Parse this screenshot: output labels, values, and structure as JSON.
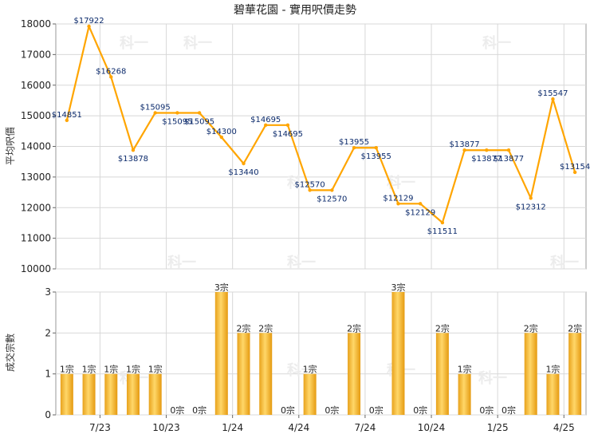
{
  "chart_data": [
    {
      "type": "line",
      "title": "碧華花園 - 實用呎價走勢",
      "ylabel": "平均呎價",
      "xlabel": "",
      "ylim": [
        10000,
        18000
      ],
      "yticks": [
        10000,
        11000,
        12000,
        13000,
        14000,
        15000,
        16000,
        17000,
        18000
      ],
      "grid": true,
      "color": "#FFA500",
      "values": [
        14851,
        17922,
        16268,
        13878,
        15095,
        15095,
        15095,
        14300,
        13440,
        14695,
        14695,
        12570,
        12570,
        13955,
        13955,
        12129,
        12129,
        11511,
        13877,
        13877,
        13877,
        12312,
        15547,
        13154
      ],
      "labels": [
        "$14851",
        "$17922",
        "$16268",
        "$13878",
        "$15095",
        "$15095",
        "$15095",
        "$14300",
        "$13440",
        "$14695",
        "$14695",
        "$12570",
        "$12570",
        "$13955",
        "$13955",
        "$12129",
        "$12129",
        "$11511",
        "$13877",
        "$13877",
        "$13877",
        "$12312",
        "$15547",
        "$13154"
      ]
    },
    {
      "type": "bar",
      "ylabel": "成交宗數",
      "xlabel": "",
      "ylim": [
        0,
        3
      ],
      "yticks": [
        0,
        1,
        2,
        3
      ],
      "grid": true,
      "values": [
        1,
        1,
        1,
        1,
        1,
        0,
        0,
        3,
        2,
        2,
        0,
        1,
        0,
        2,
        0,
        3,
        0,
        2,
        1,
        0,
        0,
        2,
        1,
        2
      ],
      "labels": [
        "1宗",
        "1宗",
        "1宗",
        "1宗",
        "1宗",
        "0宗",
        "0宗",
        "3宗",
        "2宗",
        "2宗",
        "0宗",
        "1宗",
        "0宗",
        "2宗",
        "0宗",
        "3宗",
        "0宗",
        "2宗",
        "1宗",
        "0宗",
        "0宗",
        "2宗",
        "1宗",
        "2宗"
      ],
      "xticklabels": [
        "7/23",
        "10/23",
        "1/24",
        "4/24",
        "7/24",
        "10/24",
        "1/25",
        "4/25"
      ]
    }
  ],
  "watermark": "科一"
}
